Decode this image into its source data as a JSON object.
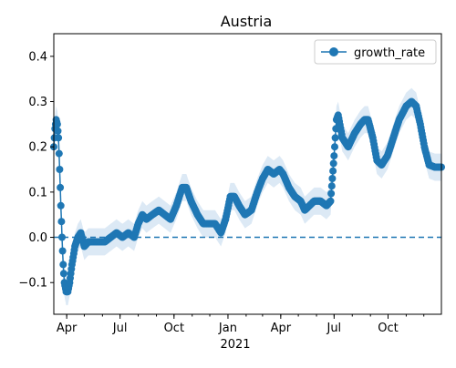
{
  "chart_data": {
    "type": "line",
    "title": "Austria",
    "xlabel": "",
    "ylabel": "",
    "x_start": "2020-03-10",
    "x_end": "2021-12-31",
    "xlim": [
      "2020-03-10",
      "2021-12-31"
    ],
    "ylim": [
      -0.17,
      0.45
    ],
    "yticks": [
      -0.1,
      0.0,
      0.1,
      0.2,
      0.3,
      0.4
    ],
    "ytick_labels": [
      "−0.1",
      "0.0",
      "0.1",
      "0.2",
      "0.3",
      "0.4"
    ],
    "xticks": [
      {
        "date": "2020-04-01",
        "label": "Apr"
      },
      {
        "date": "2020-07-01",
        "label": "Jul"
      },
      {
        "date": "2020-10-01",
        "label": "Oct"
      },
      {
        "date": "2021-01-01",
        "label": "Jan"
      },
      {
        "date": "2021-04-01",
        "label": "Apr"
      },
      {
        "date": "2021-07-01",
        "label": "Jul"
      },
      {
        "date": "2021-10-01",
        "label": "Oct"
      }
    ],
    "year_label": "2021",
    "legend": {
      "position": "top-right",
      "entries": [
        "growth_rate"
      ]
    },
    "reference_line": {
      "y": 0.0,
      "style": "dashed"
    },
    "series": [
      {
        "name": "growth_rate",
        "color": "#1f77b4",
        "band_color": "#dce9f5",
        "band_halfwidth": 0.03,
        "points": [
          [
            "2020-03-10",
            0.2
          ],
          [
            "2020-03-12",
            0.24
          ],
          [
            "2020-03-14",
            0.26
          ],
          [
            "2020-03-16",
            0.25
          ],
          [
            "2020-03-18",
            0.22
          ],
          [
            "2020-03-20",
            0.15
          ],
          [
            "2020-03-22",
            0.07
          ],
          [
            "2020-03-24",
            0.0
          ],
          [
            "2020-03-26",
            -0.06
          ],
          [
            "2020-03-28",
            -0.1
          ],
          [
            "2020-03-31",
            -0.12
          ],
          [
            "2020-04-03",
            -0.12
          ],
          [
            "2020-04-06",
            -0.1
          ],
          [
            "2020-04-10",
            -0.06
          ],
          [
            "2020-04-15",
            -0.02
          ],
          [
            "2020-04-20",
            0.0
          ],
          [
            "2020-04-25",
            0.01
          ],
          [
            "2020-05-01",
            -0.02
          ],
          [
            "2020-05-08",
            -0.01
          ],
          [
            "2020-05-15",
            -0.01
          ],
          [
            "2020-05-25",
            -0.01
          ],
          [
            "2020-06-05",
            -0.01
          ],
          [
            "2020-06-15",
            0.0
          ],
          [
            "2020-06-25",
            0.01
          ],
          [
            "2020-07-05",
            0.0
          ],
          [
            "2020-07-15",
            0.01
          ],
          [
            "2020-07-25",
            0.0
          ],
          [
            "2020-08-01",
            0.03
          ],
          [
            "2020-08-08",
            0.05
          ],
          [
            "2020-08-15",
            0.04
          ],
          [
            "2020-08-25",
            0.05
          ],
          [
            "2020-09-05",
            0.06
          ],
          [
            "2020-09-15",
            0.05
          ],
          [
            "2020-09-25",
            0.04
          ],
          [
            "2020-10-05",
            0.07
          ],
          [
            "2020-10-15",
            0.11
          ],
          [
            "2020-10-22",
            0.11
          ],
          [
            "2020-10-30",
            0.08
          ],
          [
            "2020-11-10",
            0.05
          ],
          [
            "2020-11-20",
            0.03
          ],
          [
            "2020-11-30",
            0.03
          ],
          [
            "2020-12-10",
            0.03
          ],
          [
            "2020-12-20",
            0.01
          ],
          [
            "2020-12-28",
            0.04
          ],
          [
            "2021-01-05",
            0.09
          ],
          [
            "2021-01-12",
            0.09
          ],
          [
            "2021-01-20",
            0.07
          ],
          [
            "2021-01-30",
            0.05
          ],
          [
            "2021-02-10",
            0.06
          ],
          [
            "2021-02-20",
            0.1
          ],
          [
            "2021-03-01",
            0.13
          ],
          [
            "2021-03-10",
            0.15
          ],
          [
            "2021-03-20",
            0.14
          ],
          [
            "2021-03-30",
            0.15
          ],
          [
            "2021-04-05",
            0.14
          ],
          [
            "2021-04-15",
            0.11
          ],
          [
            "2021-04-25",
            0.09
          ],
          [
            "2021-05-05",
            0.08
          ],
          [
            "2021-05-12",
            0.06
          ],
          [
            "2021-05-20",
            0.07
          ],
          [
            "2021-05-28",
            0.08
          ],
          [
            "2021-06-08",
            0.08
          ],
          [
            "2021-06-18",
            0.07
          ],
          [
            "2021-06-25",
            0.08
          ],
          [
            "2021-07-01",
            0.18
          ],
          [
            "2021-07-05",
            0.26
          ],
          [
            "2021-07-08",
            0.27
          ],
          [
            "2021-07-15",
            0.22
          ],
          [
            "2021-07-25",
            0.2
          ],
          [
            "2021-08-05",
            0.23
          ],
          [
            "2021-08-15",
            0.25
          ],
          [
            "2021-08-22",
            0.26
          ],
          [
            "2021-08-28",
            0.26
          ],
          [
            "2021-09-05",
            0.22
          ],
          [
            "2021-09-12",
            0.17
          ],
          [
            "2021-09-20",
            0.16
          ],
          [
            "2021-09-30",
            0.18
          ],
          [
            "2021-10-10",
            0.22
          ],
          [
            "2021-10-20",
            0.26
          ],
          [
            "2021-11-01",
            0.29
          ],
          [
            "2021-11-10",
            0.3
          ],
          [
            "2021-11-18",
            0.29
          ],
          [
            "2021-11-25",
            0.25
          ],
          [
            "2021-12-02",
            0.2
          ],
          [
            "2021-12-10",
            0.16
          ],
          [
            "2021-12-20",
            0.155
          ],
          [
            "2021-12-31",
            0.155
          ]
        ]
      }
    ]
  }
}
